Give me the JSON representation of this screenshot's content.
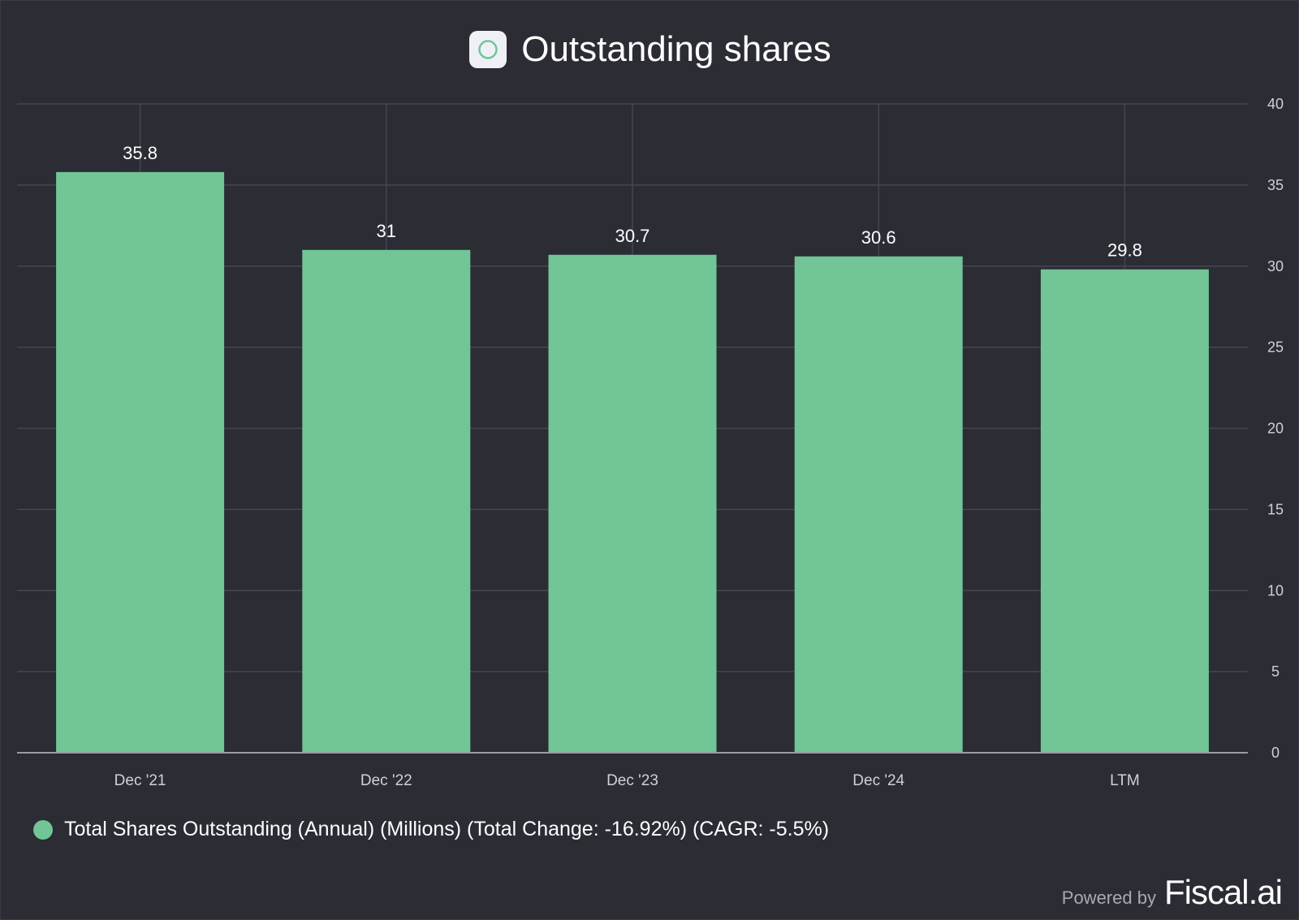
{
  "header": {
    "title": "Outstanding shares"
  },
  "chart_data": {
    "type": "bar",
    "title": "Outstanding shares",
    "categories": [
      "Dec '21",
      "Dec '22",
      "Dec '23",
      "Dec '24",
      "LTM"
    ],
    "series": [
      {
        "name": "Total Shares Outstanding (Annual) (Millions) (Total Change: -16.92%) (CAGR: -5.5%)",
        "values": [
          35.8,
          31,
          30.7,
          30.6,
          29.8
        ],
        "labels": [
          "35.8",
          "31",
          "30.7",
          "30.6",
          "29.8"
        ],
        "color": "#72c596"
      }
    ],
    "y_axis": {
      "position": "right",
      "ylim": [
        0,
        40
      ],
      "ticks": [
        "0",
        "5",
        "10",
        "15",
        "20",
        "25",
        "30",
        "35",
        "40"
      ]
    },
    "grid": true,
    "legend_position": "bottom-left"
  },
  "legend": {
    "label": "Total Shares Outstanding (Annual) (Millions) (Total Change: -16.92%) (CAGR: -5.5%)"
  },
  "branding": {
    "powered_by": "Powered by",
    "logo_text": "Fiscal.ai"
  },
  "colors": {
    "background": "#2b2c34",
    "bar": "#72c596",
    "grid": "#444652",
    "axis": "#9a9ba6",
    "text": "#ffffff",
    "tick_text": "#d0d1d8"
  }
}
